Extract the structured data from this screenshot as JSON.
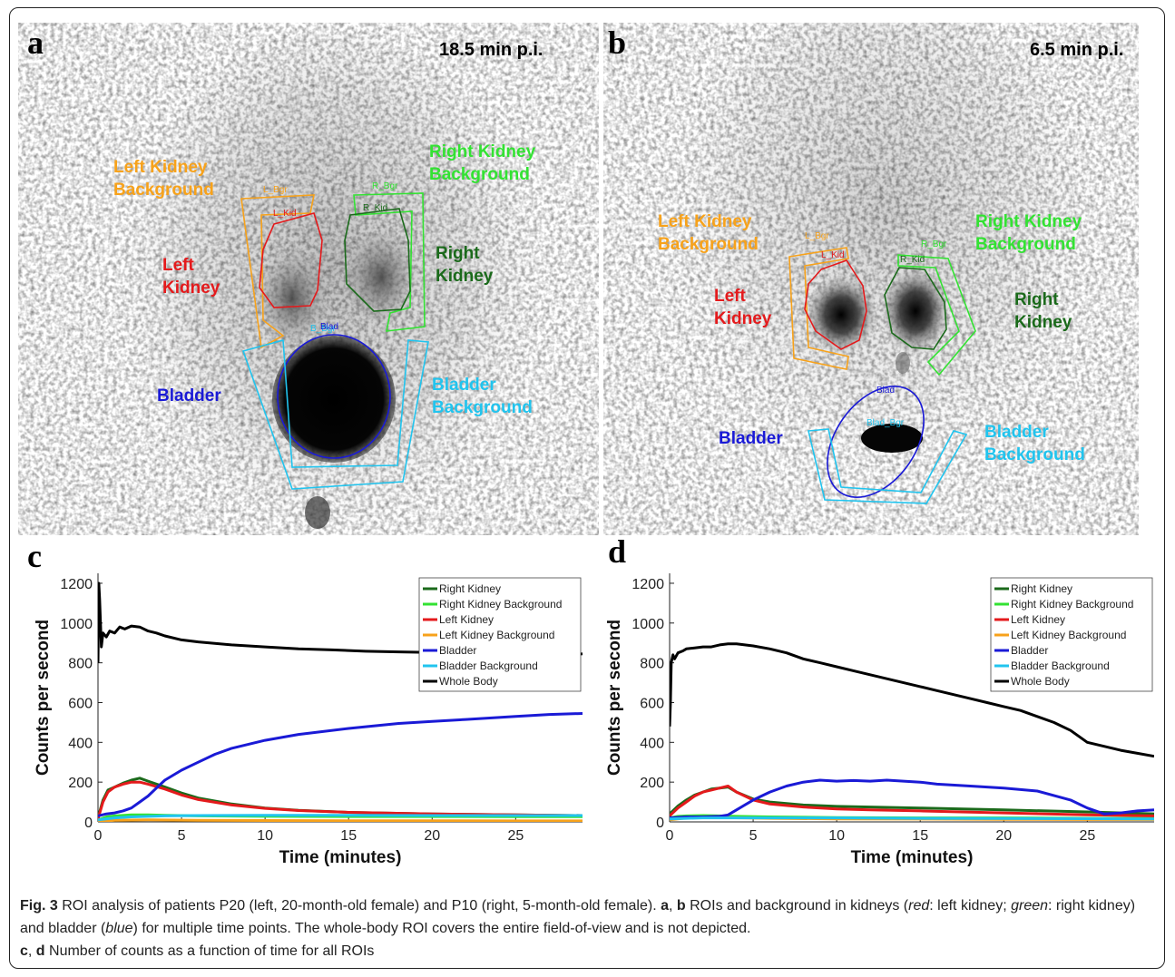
{
  "panels": {
    "a": {
      "letter": "a",
      "time": "18.5 min p.i.",
      "labels": {
        "left_kidney_background": "Left Kidney\nBackground",
        "right_kidney_background": "Right Kidney\nBackground",
        "left_kidney": "Left\nKidney",
        "right_kidney": "Right\nKidney",
        "bladder": "Bladder",
        "bladder_background": "Bladder\nBackground"
      },
      "roi_tags": {
        "l_bgr": "L_Bgr",
        "l_kid": "L_Kid",
        "r_bgr": "R_Bgr",
        "r_kid": "R_Kid",
        "blad": "Blad",
        "blad_bgr": "B_Bgr"
      }
    },
    "b": {
      "letter": "b",
      "time": "6.5 min p.i.",
      "labels": {
        "left_kidney_background": "Left Kidney\nBackground",
        "right_kidney_background": "Right Kidney\nBackground",
        "left_kidney": "Left\nKidney",
        "right_kidney": "Right\nKidney",
        "bladder": "Bladder",
        "bladder_background": "Bladder\nBackground"
      },
      "roi_tags": {
        "l_bgr": "L_Bgr",
        "l_kid": "L_Kid",
        "r_bgr": "R_Bgr",
        "r_kid": "R_Kid",
        "blad": "Blad",
        "blad_bgr": "Blad_Bgr"
      }
    },
    "c": {
      "letter": "c"
    },
    "d": {
      "letter": "d"
    }
  },
  "colors": {
    "left_kidney_background": "#f7a21b",
    "right_kidney_background": "#33e233",
    "left_kidney": "#e41a1c",
    "right_kidney": "#1b6a1b",
    "bladder": "#1a1ad6",
    "bladder_background": "#21c4ee"
  },
  "chart_data": [
    {
      "panel": "c",
      "type": "line",
      "xlabel": "Time (minutes)",
      "ylabel": "Counts per second",
      "xlim": [
        0,
        29
      ],
      "ylim": [
        0,
        1250
      ],
      "xticks": [
        0,
        5,
        10,
        15,
        20,
        25
      ],
      "yticks": [
        0,
        200,
        400,
        600,
        800,
        1000,
        1200
      ],
      "legend_position": "top-right",
      "series": [
        {
          "name": "Right Kidney",
          "color": "#1b6a1b",
          "x": [
            0,
            0.3,
            0.6,
            1,
            1.5,
            2,
            2.5,
            3,
            4,
            5,
            6,
            8,
            10,
            12,
            15,
            20,
            25,
            29
          ],
          "y": [
            20,
            110,
            160,
            175,
            195,
            210,
            220,
            205,
            175,
            145,
            120,
            90,
            70,
            58,
            48,
            40,
            35,
            32
          ]
        },
        {
          "name": "Right Kidney Background",
          "color": "#33e233",
          "x": [
            0,
            0.5,
            1,
            2,
            3,
            4,
            6,
            10,
            15,
            20,
            25,
            29
          ],
          "y": [
            10,
            25,
            30,
            35,
            35,
            33,
            30,
            28,
            27,
            27,
            26,
            26
          ]
        },
        {
          "name": "Left Kidney",
          "color": "#e41a1c",
          "x": [
            0,
            0.3,
            0.6,
            1,
            1.5,
            2,
            2.5,
            3,
            4,
            5,
            6,
            8,
            10,
            12,
            15,
            20,
            25,
            29
          ],
          "y": [
            15,
            100,
            150,
            175,
            190,
            200,
            200,
            190,
            165,
            135,
            112,
            85,
            68,
            57,
            48,
            40,
            35,
            32
          ]
        },
        {
          "name": "Left Kidney Background",
          "color": "#f7a21b",
          "x": [
            0,
            1,
            3,
            6,
            10,
            15,
            20,
            25,
            29
          ],
          "y": [
            0,
            8,
            10,
            8,
            7,
            6,
            6,
            5,
            5
          ]
        },
        {
          "name": "Bladder",
          "color": "#1a1ad6",
          "x": [
            0,
            0.5,
            1,
            1.5,
            2,
            2.5,
            3,
            3.5,
            4,
            5,
            6,
            7,
            8,
            10,
            12,
            15,
            18,
            20,
            22,
            25,
            27,
            29
          ],
          "y": [
            30,
            40,
            45,
            55,
            70,
            100,
            130,
            170,
            210,
            260,
            300,
            340,
            370,
            410,
            440,
            470,
            495,
            505,
            515,
            530,
            540,
            545
          ]
        },
        {
          "name": "Bladder Background",
          "color": "#21c4ee",
          "x": [
            0,
            1,
            2,
            4,
            6,
            10,
            15,
            20,
            25,
            29
          ],
          "y": [
            10,
            20,
            25,
            30,
            32,
            33,
            33,
            32,
            32,
            32
          ]
        },
        {
          "name": "Whole Body",
          "color": "#000000",
          "x": [
            0,
            0.05,
            0.1,
            0.2,
            0.3,
            0.5,
            0.7,
            1,
            1.3,
            1.6,
            2,
            2.5,
            3,
            3.5,
            4,
            5,
            6,
            8,
            10,
            12,
            14,
            16,
            18,
            20,
            22,
            24,
            26,
            28,
            29
          ],
          "y": [
            800,
            1200,
            1120,
            880,
            950,
            930,
            960,
            950,
            980,
            970,
            985,
            980,
            960,
            950,
            935,
            915,
            905,
            890,
            880,
            870,
            865,
            858,
            855,
            852,
            850,
            845,
            840,
            838,
            845
          ]
        }
      ]
    },
    {
      "panel": "d",
      "type": "line",
      "xlabel": "Time (minutes)",
      "ylabel": "Counts per second",
      "xlim": [
        0,
        29
      ],
      "ylim": [
        0,
        1250
      ],
      "xticks": [
        0,
        5,
        10,
        15,
        20,
        25
      ],
      "yticks": [
        0,
        200,
        400,
        600,
        800,
        1000,
        1200
      ],
      "legend_position": "top-right",
      "series": [
        {
          "name": "Right Kidney",
          "color": "#1b6a1b",
          "x": [
            0,
            0.5,
            1,
            1.5,
            2,
            2.5,
            3,
            3.5,
            4,
            5,
            6,
            8,
            10,
            12,
            15,
            20,
            25,
            29
          ],
          "y": [
            40,
            80,
            110,
            135,
            150,
            165,
            170,
            175,
            150,
            115,
            100,
            85,
            78,
            75,
            70,
            60,
            50,
            40
          ]
        },
        {
          "name": "Right Kidney Background",
          "color": "#33e233",
          "x": [
            0,
            0.5,
            1,
            2,
            3,
            4,
            6,
            10,
            15,
            20,
            25,
            29
          ],
          "y": [
            20,
            28,
            30,
            32,
            30,
            28,
            25,
            22,
            20,
            20,
            18,
            18
          ]
        },
        {
          "name": "Left Kidney",
          "color": "#e41a1c",
          "x": [
            0,
            0.5,
            1,
            1.5,
            2,
            2.5,
            3,
            3.5,
            4,
            5,
            6,
            8,
            10,
            12,
            15,
            20,
            25,
            29
          ],
          "y": [
            30,
            70,
            100,
            130,
            150,
            160,
            170,
            180,
            150,
            110,
            90,
            75,
            65,
            60,
            55,
            45,
            35,
            30
          ]
        },
        {
          "name": "Left Kidney Background",
          "color": "#f7a21b",
          "x": [
            0,
            1,
            3,
            6,
            10,
            15,
            20,
            25,
            29
          ],
          "y": [
            10,
            20,
            22,
            18,
            15,
            14,
            13,
            12,
            12
          ]
        },
        {
          "name": "Bladder",
          "color": "#1a1ad6",
          "x": [
            0,
            1,
            2,
            3,
            3.5,
            4,
            5,
            6,
            7,
            8,
            9,
            10,
            11,
            12,
            13,
            14,
            15,
            16,
            18,
            20,
            22,
            24,
            25,
            26,
            27,
            28,
            29
          ],
          "y": [
            20,
            25,
            25,
            28,
            35,
            60,
            110,
            150,
            180,
            200,
            210,
            205,
            208,
            205,
            210,
            205,
            200,
            190,
            180,
            170,
            155,
            110,
            70,
            40,
            45,
            55,
            60
          ]
        },
        {
          "name": "Bladder Background",
          "color": "#21c4ee",
          "x": [
            0,
            1,
            2,
            4,
            6,
            10,
            15,
            20,
            25,
            29
          ],
          "y": [
            15,
            18,
            20,
            20,
            20,
            20,
            18,
            17,
            16,
            15
          ]
        },
        {
          "name": "Whole Body",
          "color": "#000000",
          "x": [
            0,
            0.05,
            0.1,
            0.2,
            0.3,
            0.5,
            0.8,
            1,
            1.5,
            2,
            2.5,
            3,
            3.5,
            4,
            4.5,
            5,
            6,
            7,
            8,
            9,
            10,
            11,
            12,
            13,
            14,
            15,
            16,
            17,
            18,
            19,
            20,
            21,
            22,
            23,
            24,
            25,
            26,
            27,
            28,
            29
          ],
          "y": [
            480,
            600,
            800,
            840,
            820,
            850,
            860,
            870,
            875,
            880,
            880,
            890,
            895,
            895,
            890,
            885,
            870,
            850,
            820,
            800,
            780,
            760,
            740,
            720,
            700,
            680,
            660,
            640,
            620,
            600,
            580,
            560,
            530,
            500,
            460,
            400,
            380,
            360,
            345,
            330
          ]
        }
      ]
    }
  ],
  "caption": {
    "fig": "Fig. 3",
    "text_1": " ROI analysis of patients P20 (left, 20-month-old female) and P10 (right, 5-month-old female). ",
    "a": "a",
    "sep1": ", ",
    "b": "b",
    "text_2": " ROIs and background in kidneys (",
    "red": "red",
    "text_3": ": left kidney; ",
    "green": "green",
    "text_4": ": right kidney) and bladder (",
    "blue": "blue",
    "text_5": ") for multiple time points. The whole-body ROI covers the entire field-of-view and is not depicted.",
    "c": "c",
    "sep2": ", ",
    "d": "d",
    "text_6": " Number of counts as a function of time for all ROIs"
  }
}
